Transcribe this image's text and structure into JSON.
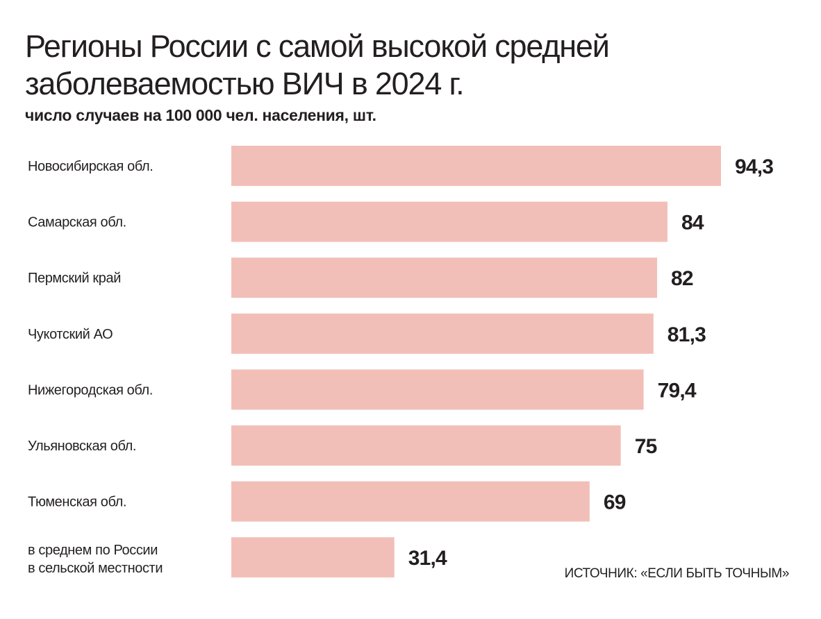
{
  "chart_data": {
    "type": "bar",
    "orientation": "horizontal",
    "title": "Регионы России с самой высокой средней заболеваемостью ВИЧ в 2024 г.",
    "subtitle": "число случаев на 100 000 чел. населения, шт.",
    "categories": [
      "Новосибирская обл.",
      "Самарская обл.",
      "Пермский край",
      "Чукотский АО",
      "Нижегородская обл.",
      "Ульяновская обл.",
      "Тюменская обл.",
      "в среднем по России\nв сельской местности"
    ],
    "values": [
      94.3,
      84,
      82,
      81.3,
      79.4,
      75,
      69,
      31.4
    ],
    "value_labels": [
      "94,3",
      "84",
      "82",
      "81,3",
      "79,4",
      "75",
      "69",
      "31,4"
    ],
    "xlim": [
      0,
      100
    ],
    "grid": false,
    "bar_color": "#f2bfb8",
    "source": "ИСТОЧНИК: «ЕСЛИ БЫТЬ ТОЧНЫМ»"
  }
}
